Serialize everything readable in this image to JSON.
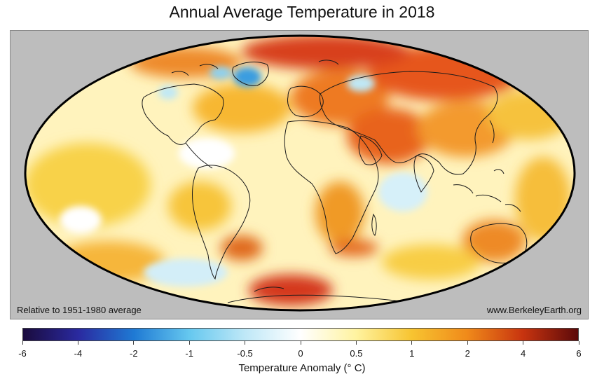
{
  "title": "Annual Average Temperature in 2018",
  "note_left": "Relative to 1951-1980 average",
  "note_right": "www.BerkeleyEarth.org",
  "legend": {
    "title": "Temperature Anomaly (° C)",
    "ticks": [
      "-6",
      "-4",
      "-2",
      "-1",
      "-0.5",
      "0",
      "0.5",
      "1",
      "2",
      "4",
      "6"
    ],
    "stops": [
      "#1a0b3d",
      "#2a2aa0",
      "#1f7ad4",
      "#66c8ef",
      "#bfe8f7",
      "#ffffff",
      "#fff3a0",
      "#f7c431",
      "#f08a1a",
      "#c8340f",
      "#5c0a0a"
    ]
  },
  "colors": {
    "ocean_base": "#fff6c8",
    "frame": "#bdbdbd"
  }
}
